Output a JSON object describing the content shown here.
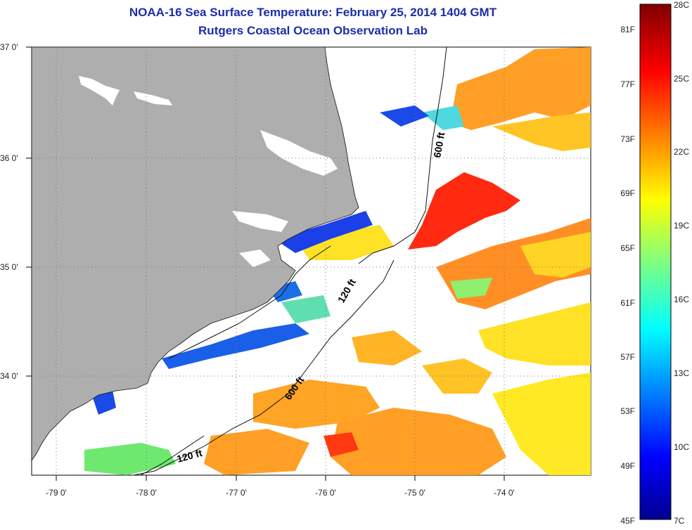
{
  "header": {
    "title": "NOAA-16 Sea Surface Temperature:  February 25, 2014 1404 GMT",
    "subtitle": "Rutgers Coastal Ocean Observation Lab"
  },
  "map": {
    "lon_ticks": [
      "-79 0'",
      "-78 0'",
      "-77 0'",
      "-76 0'",
      "-75 0'",
      "-74 0'"
    ],
    "lat_ticks": [
      "37 0'",
      "36 0'",
      "35 0'",
      "34 0'"
    ],
    "contours": [
      {
        "label": "600 ft"
      },
      {
        "label": "120 ft"
      },
      {
        "label": "600 ft"
      },
      {
        "label": "120 ft"
      }
    ]
  },
  "colorbar": {
    "fahrenheit": [
      "81F",
      "77F",
      "73F",
      "69F",
      "65F",
      "61F",
      "57F",
      "53F",
      "49F",
      "45F"
    ],
    "celsius": [
      "28C",
      "25C",
      "22C",
      "19C",
      "16C",
      "13C",
      "10C",
      "7C"
    ]
  },
  "colors": {
    "title": "#1c2ea8",
    "land": "#aeaeae",
    "ocean_nodata": "#ffffff"
  }
}
